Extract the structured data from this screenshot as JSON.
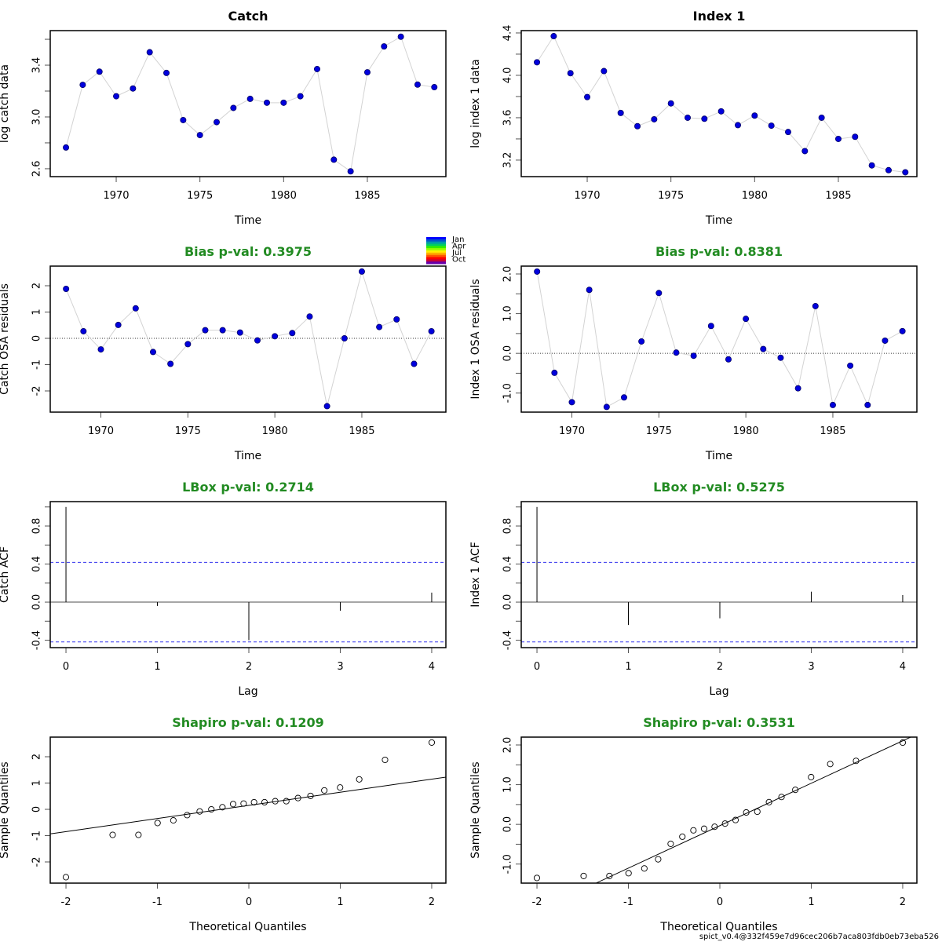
{
  "footer": "spict_v0.4@332f459e7d96cec206b7aca803fdb0eb73eba526",
  "colors": {
    "point_fill": "#0000dd",
    "point_stroke": "#000066",
    "connect_line": "#d3d3d3",
    "title_ok": "#228b22",
    "acf_bound": "#3333ee",
    "axis": "#000000"
  },
  "season_legend": {
    "labels": [
      "Jan",
      "Apr",
      "Jul",
      "Oct"
    ],
    "colors": [
      "#0000ff",
      "#0055cc",
      "#0099aa",
      "#00cc66",
      "#33ee00",
      "#99ff00",
      "#ffee00",
      "#ffaa00",
      "#ff5500",
      "#ff0000",
      "#cc0033",
      "#6600aa"
    ]
  },
  "chart_data": [
    {
      "id": "catch-data",
      "type": "line",
      "title": "Catch",
      "title_color": "#000000",
      "xlabel": "Time",
      "ylabel": "log catch data",
      "xlim": [
        1966.06,
        1989.69
      ],
      "ylim": [
        2.539,
        3.667
      ],
      "xticks": [
        1970,
        1975,
        1980,
        1985
      ],
      "xtick_labels": [
        "1970",
        "1975",
        "1980",
        "1985"
      ],
      "yticks": [
        2.6,
        2.8,
        3.0,
        3.2,
        3.4,
        3.6
      ],
      "ytick_labels": [
        "2.6",
        "",
        "3.0",
        "",
        "3.4",
        ""
      ],
      "x": [
        1967,
        1968,
        1969,
        1970,
        1971,
        1972,
        1973,
        1974,
        1975,
        1976,
        1977,
        1978,
        1979,
        1980,
        1981,
        1982,
        1983,
        1984,
        1985,
        1986,
        1987,
        1988,
        1989
      ],
      "y": [
        2.764,
        3.248,
        3.35,
        3.16,
        3.22,
        3.5,
        3.34,
        2.976,
        2.86,
        2.96,
        3.07,
        3.14,
        3.11,
        3.11,
        3.16,
        3.37,
        2.67,
        2.58,
        3.345,
        3.545,
        3.62,
        3.25,
        3.23
      ]
    },
    {
      "id": "index1-data",
      "type": "line",
      "title": "Index 1",
      "title_color": "#000000",
      "xlabel": "Time",
      "ylabel": "log index 1 data",
      "xlim": [
        1966.06,
        1989.69
      ],
      "ylim": [
        3.044,
        4.422
      ],
      "xticks": [
        1970,
        1975,
        1980,
        1985
      ],
      "xtick_labels": [
        "1970",
        "1975",
        "1980",
        "1985"
      ],
      "yticks": [
        3.2,
        3.4,
        3.6,
        3.8,
        4.0,
        4.2,
        4.4
      ],
      "ytick_labels": [
        "3.2",
        "",
        "3.6",
        "",
        "4.0",
        "",
        "4.4"
      ],
      "x": [
        1967,
        1968,
        1969,
        1970,
        1971,
        1972,
        1973,
        1974,
        1975,
        1976,
        1977,
        1978,
        1979,
        1980,
        1981,
        1982,
        1983,
        1984,
        1985,
        1986,
        1987,
        1988,
        1989
      ],
      "y": [
        4.123,
        4.37,
        4.02,
        3.795,
        4.04,
        3.645,
        3.52,
        3.585,
        3.735,
        3.6,
        3.59,
        3.66,
        3.53,
        3.62,
        3.525,
        3.465,
        3.285,
        3.6,
        3.4,
        3.42,
        3.15,
        3.105,
        3.085
      ]
    },
    {
      "id": "catch-residuals",
      "type": "line",
      "title": "Bias p-val: 0.3975",
      "title_color": "#228b22",
      "xlabel": "Time",
      "ylabel": "Catch OSA residuals",
      "xlim": [
        1967.09,
        1989.83
      ],
      "ylim": [
        -2.806,
        2.746
      ],
      "xticks": [
        1970,
        1975,
        1980,
        1985
      ],
      "xtick_labels": [
        "1970",
        "1975",
        "1980",
        "1985"
      ],
      "yticks": [
        -2,
        -1,
        0,
        1,
        2
      ],
      "ytick_labels": [
        "-2",
        "-1",
        "0",
        "1",
        "2"
      ],
      "hline": 0,
      "x": [
        1968,
        1969,
        1970,
        1971,
        1972,
        1973,
        1974,
        1975,
        1976,
        1977,
        1978,
        1979,
        1980,
        1981,
        1982,
        1983,
        1984,
        1985,
        1986,
        1987,
        1988,
        1989
      ],
      "y": [
        1.88,
        0.27,
        -0.42,
        0.51,
        1.14,
        -0.52,
        -0.97,
        -0.22,
        0.31,
        0.31,
        0.22,
        -0.08,
        0.08,
        0.2,
        0.83,
        -2.58,
        0.0,
        2.54,
        0.43,
        0.72,
        -0.97,
        0.27
      ],
      "season_legend": true
    },
    {
      "id": "index1-residuals",
      "type": "line",
      "title": "Bias p-val: 0.8381",
      "title_color": "#228b22",
      "xlabel": "Time",
      "ylabel": "Index 1 OSA residuals",
      "xlim": [
        1967.09,
        1989.83
      ],
      "ylim": [
        -1.48,
        2.198
      ],
      "xticks": [
        1970,
        1975,
        1980,
        1985
      ],
      "xtick_labels": [
        "1970",
        "1975",
        "1980",
        "1985"
      ],
      "yticks": [
        -1.0,
        -0.5,
        0.0,
        0.5,
        1.0,
        1.5,
        2.0
      ],
      "ytick_labels": [
        "-1.0",
        "",
        "0.0",
        "",
        "1.0",
        "",
        "2.0"
      ],
      "hline": 0,
      "x": [
        1968,
        1969,
        1970,
        1971,
        1972,
        1973,
        1974,
        1975,
        1976,
        1977,
        1978,
        1979,
        1980,
        1981,
        1982,
        1983,
        1984,
        1985,
        1986,
        1987,
        1988,
        1989
      ],
      "y": [
        2.06,
        -0.49,
        -1.23,
        1.6,
        -1.35,
        -1.11,
        0.3,
        1.52,
        0.02,
        -0.06,
        0.69,
        -0.15,
        0.87,
        0.11,
        -0.11,
        -0.88,
        1.19,
        -1.3,
        -0.31,
        -1.3,
        0.32,
        0.56
      ]
    },
    {
      "id": "catch-acf",
      "type": "bar",
      "subtype": "acf",
      "title": "LBox p-val: 0.2714",
      "title_color": "#228b22",
      "xlabel": "Lag",
      "ylabel": "Catch ACF",
      "xlim": [
        -0.172,
        4.155
      ],
      "ylim": [
        -0.478,
        1.056
      ],
      "xticks": [
        0,
        1,
        2,
        3,
        4
      ],
      "xtick_labels": [
        "0",
        "1",
        "2",
        "3",
        "4"
      ],
      "yticks": [
        -0.4,
        -0.2,
        0.0,
        0.2,
        0.4,
        0.6,
        0.8,
        1.0
      ],
      "ytick_labels": [
        "-0.4",
        "",
        "0.0",
        "",
        "0.4",
        "",
        "0.8",
        ""
      ],
      "lags": [
        0,
        1,
        2,
        3,
        4
      ],
      "acf": [
        1.0,
        -0.04,
        -0.4,
        -0.09,
        0.1
      ],
      "conf_bound": 0.418
    },
    {
      "id": "index1-acf",
      "type": "bar",
      "subtype": "acf",
      "title": "LBox p-val: 0.5275",
      "title_color": "#228b22",
      "xlabel": "Lag",
      "ylabel": "Index 1 ACF",
      "xlim": [
        -0.172,
        4.155
      ],
      "ylim": [
        -0.478,
        1.056
      ],
      "xticks": [
        0,
        1,
        2,
        3,
        4
      ],
      "xtick_labels": [
        "0",
        "1",
        "2",
        "3",
        "4"
      ],
      "yticks": [
        -0.4,
        -0.2,
        0.0,
        0.2,
        0.4,
        0.6,
        0.8,
        1.0
      ],
      "ytick_labels": [
        "-0.4",
        "",
        "0.0",
        "",
        "0.4",
        "",
        "0.8",
        ""
      ],
      "lags": [
        0,
        1,
        2,
        3,
        4
      ],
      "acf": [
        1.0,
        -0.24,
        -0.17,
        0.11,
        0.075
      ],
      "conf_bound": 0.418
    },
    {
      "id": "catch-qq",
      "type": "scatter",
      "subtype": "qq",
      "title": "Shapiro p-val: 0.1209",
      "title_color": "#228b22",
      "xlabel": "Theoretical Quantiles",
      "ylabel": "Sample Quantiles",
      "xlim": [
        -2.172,
        2.155
      ],
      "ylim": [
        -2.806,
        2.746
      ],
      "xticks": [
        -2,
        -1,
        0,
        1,
        2
      ],
      "xtick_labels": [
        "-2",
        "-1",
        "0",
        "1",
        "2"
      ],
      "yticks": [
        -2,
        -1,
        0,
        1,
        2
      ],
      "ytick_labels": [
        "-2",
        "-1",
        "0",
        "1",
        "2"
      ],
      "sample": [
        -2.58,
        -0.97,
        -0.97,
        -0.52,
        -0.42,
        -0.22,
        -0.08,
        0.0,
        0.08,
        0.2,
        0.22,
        0.27,
        0.27,
        0.31,
        0.31,
        0.43,
        0.51,
        0.72,
        0.83,
        1.14,
        1.88,
        2.54
      ],
      "qqline": {
        "slope": 0.499,
        "intercept": 0.15
      }
    },
    {
      "id": "index1-qq",
      "type": "scatter",
      "subtype": "qq",
      "title": "Shapiro p-val: 0.3531",
      "title_color": "#228b22",
      "xlabel": "Theoretical Quantiles",
      "ylabel": "Sample Quantiles",
      "xlim": [
        -2.172,
        2.155
      ],
      "ylim": [
        -1.48,
        2.198
      ],
      "xticks": [
        -2,
        -1,
        0,
        1,
        2
      ],
      "xtick_labels": [
        "-2",
        "-1",
        "0",
        "1",
        "2"
      ],
      "yticks": [
        -1.0,
        -0.5,
        0.0,
        0.5,
        1.0,
        1.5,
        2.0
      ],
      "ytick_labels": [
        "-1.0",
        "",
        "0.0",
        "",
        "1.0",
        "",
        "2.0"
      ],
      "sample": [
        -1.35,
        -1.3,
        -1.3,
        -1.23,
        -1.11,
        -0.88,
        -0.49,
        -0.31,
        -0.15,
        -0.11,
        -0.06,
        0.02,
        0.11,
        0.3,
        0.32,
        0.56,
        0.69,
        0.87,
        1.19,
        1.52,
        1.6,
        2.06
      ],
      "qqline": {
        "slope": 1.069,
        "intercept": -0.033
      }
    }
  ]
}
